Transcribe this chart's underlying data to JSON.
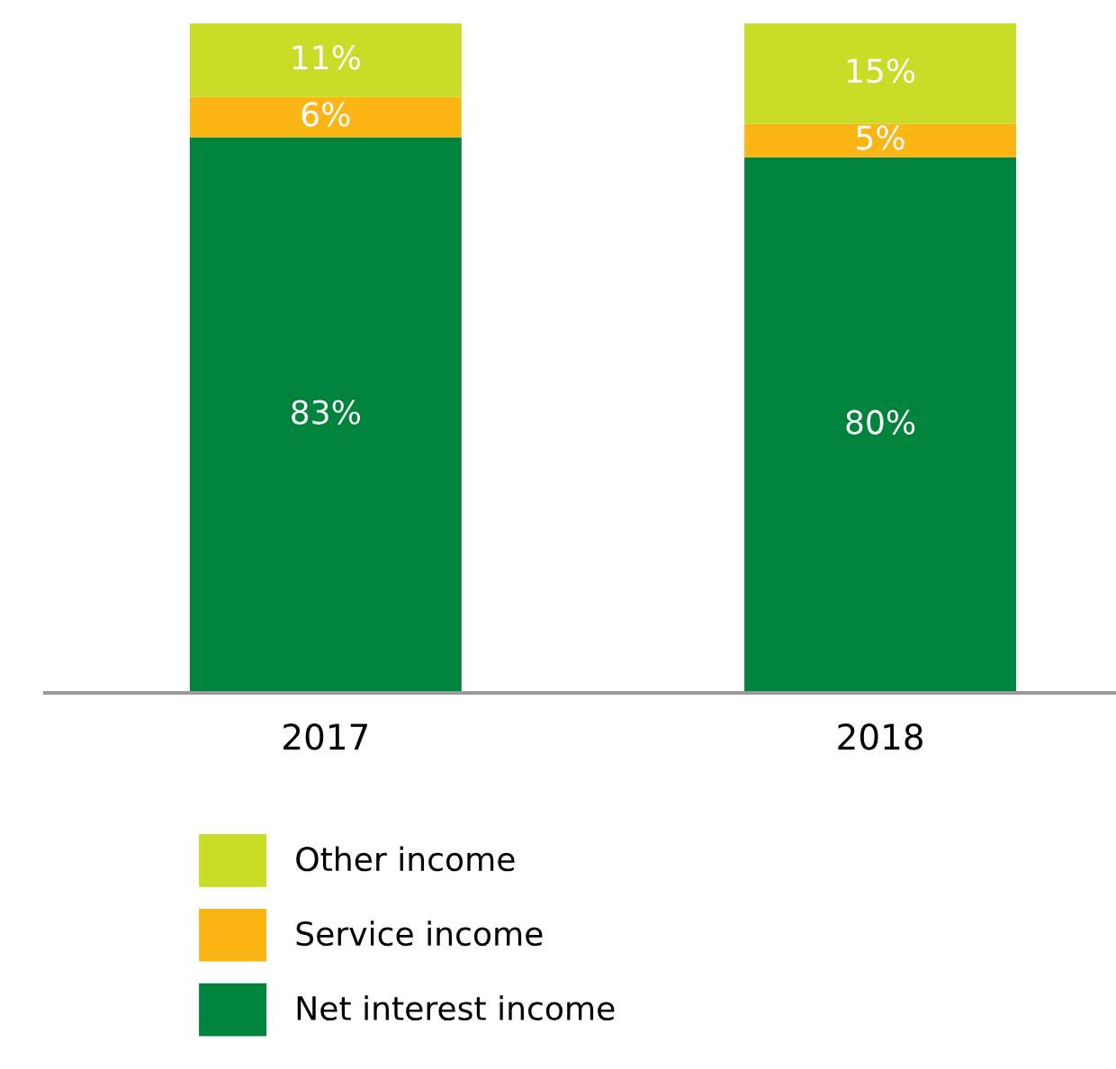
{
  "chart_data": {
    "type": "bar",
    "stacked": true,
    "categories": [
      "2017",
      "2018"
    ],
    "series": [
      {
        "name": "Net interest income",
        "color": "#00843d",
        "values": [
          83,
          80
        ],
        "value_labels": [
          "83%",
          "80%"
        ]
      },
      {
        "name": "Service income",
        "color": "#fbb616",
        "values": [
          6,
          5
        ],
        "value_labels": [
          "6%",
          "5%"
        ]
      },
      {
        "name": "Other income",
        "color": "#c8dc28",
        "values": [
          11,
          15
        ],
        "value_labels": [
          "11%",
          "15%"
        ]
      }
    ],
    "legend": "bottom",
    "grid": false
  }
}
